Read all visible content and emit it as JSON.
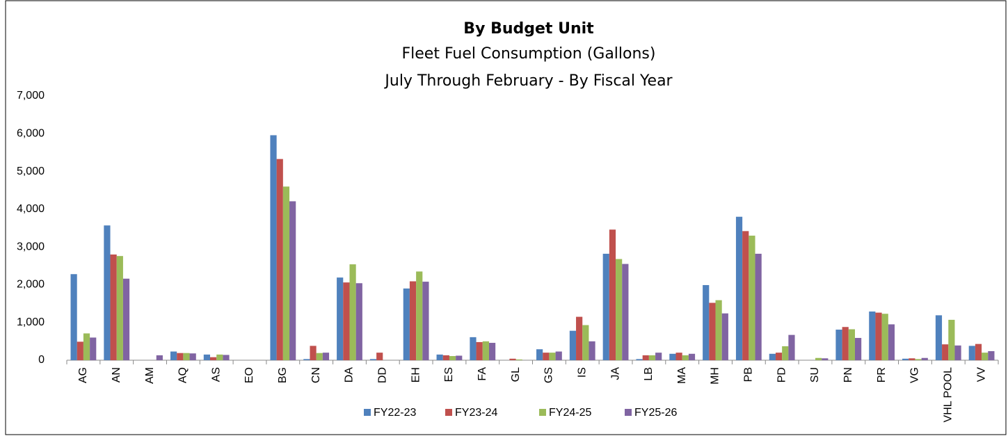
{
  "chart_data": {
    "type": "bar",
    "title": "By Budget Unit",
    "subtitle": "Fleet Fuel Consumption (Gallons)",
    "subtitle2": "July Through February - By Fiscal Year",
    "categories": [
      "AG",
      "AN",
      "AM",
      "AQ",
      "AS",
      "EO",
      "BG",
      "CN",
      "DA",
      "DD",
      "EH",
      "ES",
      "FA",
      "GL",
      "GS",
      "IS",
      "JA",
      "LB",
      "MA",
      "MH",
      "PB",
      "PD",
      "SU",
      "PN",
      "PR",
      "VG",
      "VHL POOL",
      "VV"
    ],
    "series": [
      {
        "name": "FY22-23",
        "color": "#4f81bd",
        "values": [
          2280,
          3570,
          0,
          230,
          150,
          0,
          5960,
          30,
          2190,
          30,
          1900,
          150,
          610,
          0,
          290,
          780,
          2820,
          30,
          170,
          1990,
          3800,
          170,
          0,
          810,
          1290,
          40,
          1190,
          380
        ]
      },
      {
        "name": "FY23-24",
        "color": "#c0504d",
        "values": [
          490,
          2800,
          0,
          190,
          80,
          0,
          5330,
          380,
          2060,
          200,
          2090,
          130,
          480,
          40,
          200,
          1150,
          3460,
          130,
          200,
          1520,
          3420,
          200,
          0,
          880,
          1260,
          50,
          420,
          430
        ]
      },
      {
        "name": "FY24-25",
        "color": "#9bbb59",
        "values": [
          710,
          2760,
          0,
          190,
          150,
          0,
          4600,
          190,
          2540,
          0,
          2350,
          110,
          500,
          20,
          200,
          930,
          2680,
          130,
          130,
          1590,
          3300,
          370,
          60,
          820,
          1230,
          30,
          1070,
          200
        ]
      },
      {
        "name": "FY25-26",
        "color": "#8064a2",
        "values": [
          600,
          2160,
          130,
          180,
          140,
          0,
          4210,
          200,
          2040,
          0,
          2080,
          120,
          460,
          0,
          230,
          500,
          2550,
          200,
          170,
          1240,
          2820,
          670,
          50,
          590,
          950,
          60,
          390,
          240
        ]
      }
    ],
    "ylim": [
      0,
      7000
    ],
    "yticks": [
      0,
      {
        "value": 1000,
        "label": "1,000"
      },
      {
        "value": 2000,
        "label": "2,000"
      },
      {
        "value": 3000,
        "label": "3,000"
      },
      {
        "value": 4000,
        "label": "4,000"
      },
      {
        "value": 5000,
        "label": "5,000"
      },
      {
        "value": 6000,
        "label": "6,000"
      },
      {
        "value": 7000,
        "label": "7,000"
      }
    ],
    "grid": false,
    "legend": "bottom"
  }
}
